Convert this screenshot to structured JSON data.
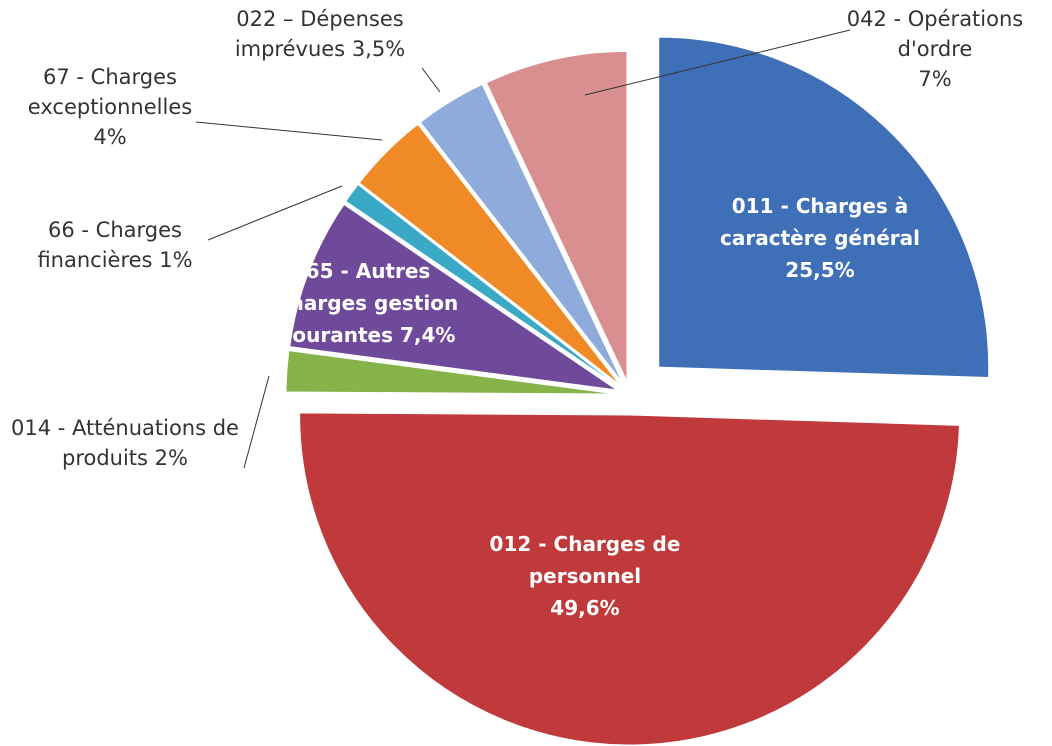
{
  "chart_data": {
    "type": "pie",
    "categories": [
      "011 - Charges à caractère général",
      "012 - Charges de personnel",
      "014 - Atténuations de produits",
      "65 - Autres charges gestion courantes",
      "66 - Charges financières",
      "67 - Charges exceptionnelles",
      "022 – Dépenses imprévues",
      "042 - Opérations d'ordre"
    ],
    "values": [
      25.5,
      49.6,
      2,
      7.4,
      1,
      4,
      3.5,
      7
    ],
    "value_labels": [
      "25,5%",
      "49,6%",
      "2%",
      "7,4%",
      "1%",
      "4%",
      "3,5%",
      "7%"
    ],
    "colors": [
      "#3f6fb6",
      "#c0393b",
      "#86b34a",
      "#6f4a9b",
      "#3aa9c6",
      "#f08a26",
      "#8eabdb",
      "#d98f8f"
    ]
  }
}
